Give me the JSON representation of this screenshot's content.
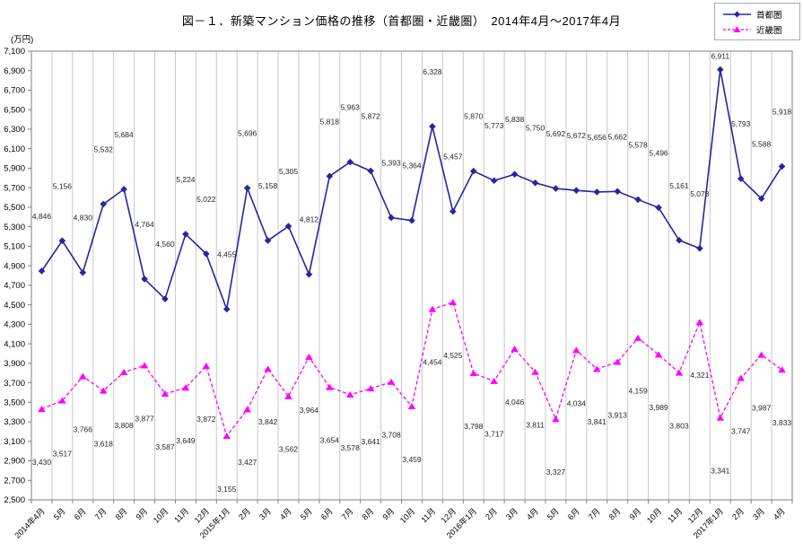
{
  "chart_data": {
    "type": "line",
    "title": "図－１．新築マンション価格の推移（首都圏・近畿圏）　2014年4月～2017年4月",
    "xlabel": "",
    "ylabel": "(万円)",
    "ylim": [
      2500,
      7100
    ],
    "ytick_step": 200,
    "grid": "vertical-monthly",
    "legend_position": "top-right",
    "dark_separators_after_categories": [
      "2015年4月",
      "2017年2月"
    ],
    "categories": [
      "2014年4月",
      "5月",
      "6月",
      "7月",
      "8月",
      "9月",
      "10月",
      "11月",
      "12月",
      "2015年1月",
      "2月",
      "3月",
      "4月",
      "5月",
      "6月",
      "7月",
      "8月",
      "9月",
      "10月",
      "11月",
      "12月",
      "2016年1月",
      "2月",
      "3月",
      "4月",
      "5月",
      "6月",
      "7月",
      "8月",
      "9月",
      "10月",
      "11月",
      "12月",
      "2017年1月",
      "2月",
      "3月",
      "4月"
    ],
    "series": [
      {
        "name": "首都圏",
        "color": "#26269f",
        "line": "solid",
        "marker": "diamond",
        "values": [
          4846,
          5156,
          4830,
          5532,
          5684,
          4764,
          4560,
          5224,
          5022,
          4455,
          5696,
          5158,
          5305,
          4812,
          5818,
          5963,
          5872,
          5393,
          5364,
          6328,
          5457,
          5870,
          5773,
          5838,
          5750,
          5692,
          5672,
          5656,
          5662,
          5578,
          5496,
          5161,
          5078,
          6911,
          5793,
          5588,
          5918
        ]
      },
      {
        "name": "近畿圏",
        "color": "#ff00ff",
        "line": "dashed",
        "marker": "triangle",
        "values": [
          3430,
          3517,
          3766,
          3618,
          3808,
          3877,
          3587,
          3649,
          3872,
          3155,
          3427,
          3842,
          3562,
          3964,
          3654,
          3578,
          3641,
          3708,
          3459,
          4454,
          4525,
          3798,
          3717,
          4046,
          3811,
          3327,
          4034,
          3841,
          3913,
          4159,
          3989,
          3803,
          4321,
          3341,
          3747,
          3987,
          3833
        ]
      }
    ]
  }
}
